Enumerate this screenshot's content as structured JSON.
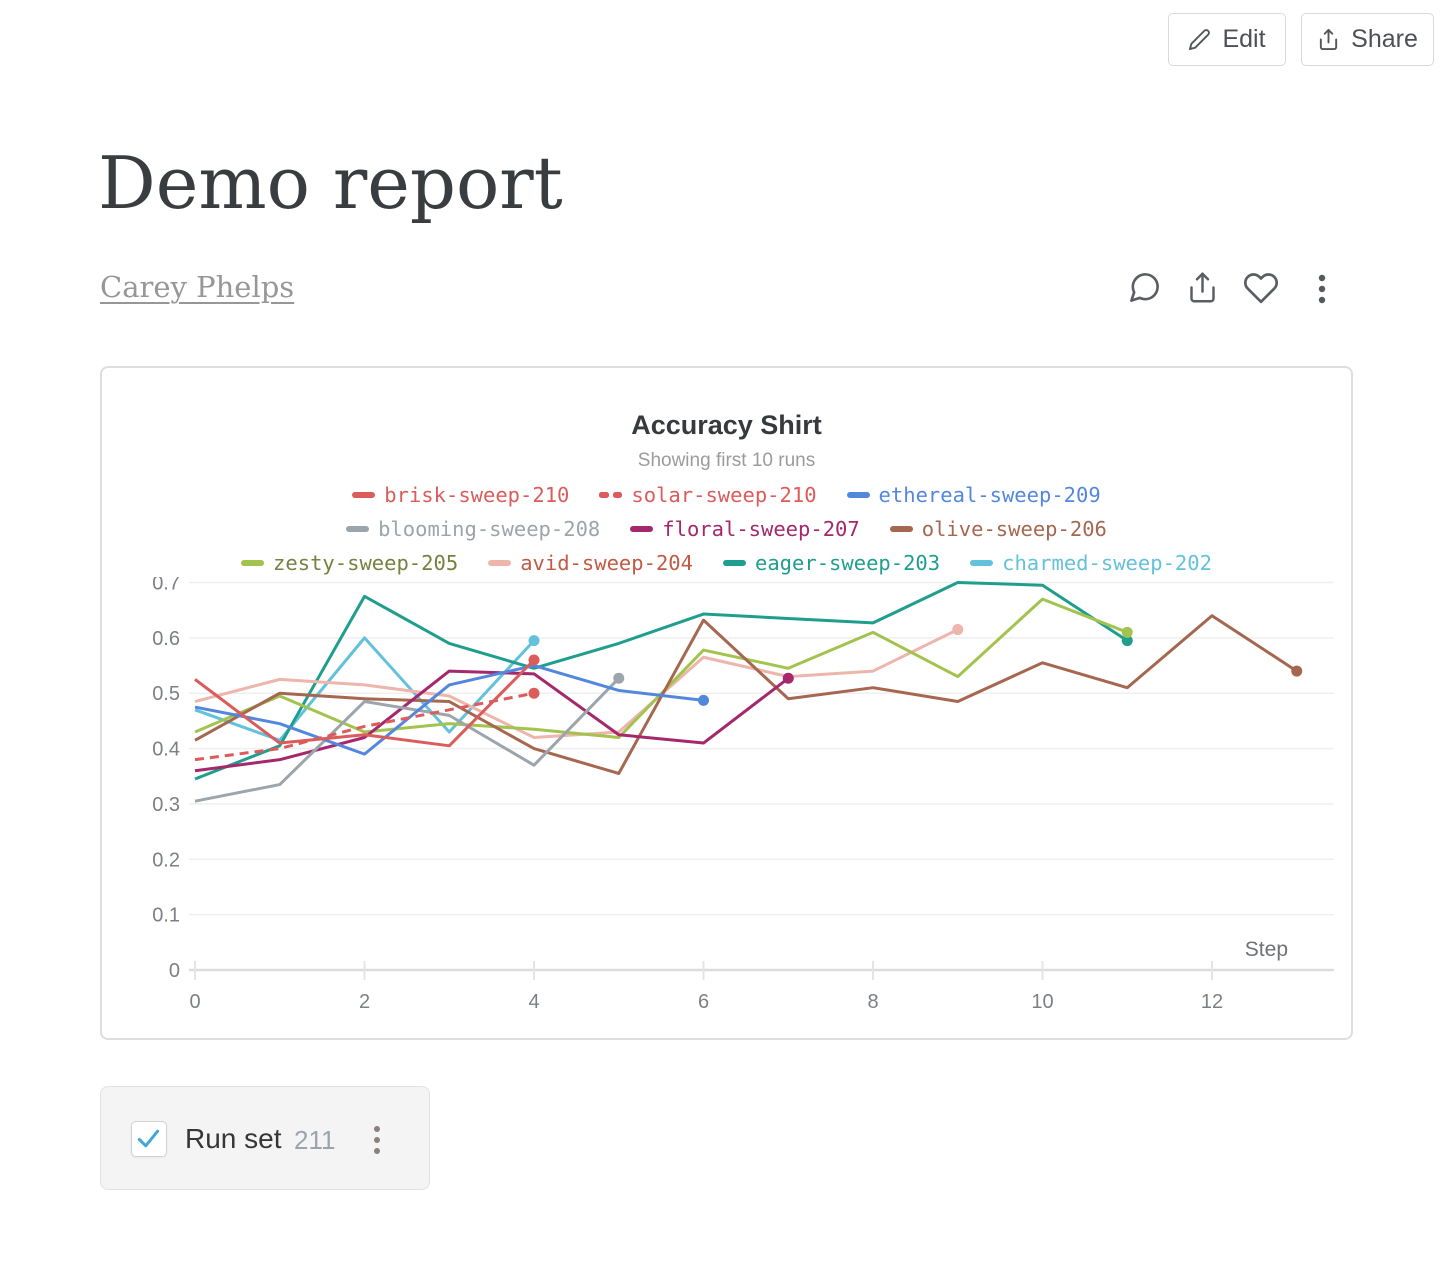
{
  "toolbar": {
    "edit_label": "Edit",
    "share_label": "Share"
  },
  "report": {
    "title": "Demo report",
    "author": "Carey Phelps"
  },
  "runset": {
    "label": "Run set",
    "count": "211",
    "checked": true
  },
  "icons": {
    "edit": "pencil-icon",
    "share": "share-up-arrow-icon",
    "header": [
      "comment-bubble-icon",
      "export-icon",
      "heart-icon",
      "kebab-menu-icon"
    ],
    "checkmark_color": "#3fa7d6"
  },
  "chart_data": {
    "type": "line",
    "title": "Accuracy Shirt",
    "subtitle": "Showing first 10 runs",
    "xlabel": "Step",
    "ylabel": "",
    "x_start": 0,
    "x_step": 1,
    "x_ticks": [
      0,
      2,
      4,
      6,
      8,
      10,
      12
    ],
    "y_ticks": [
      0,
      0.1,
      0.2,
      0.3,
      0.4,
      0.5,
      0.6,
      0.7
    ],
    "xlim": [
      0,
      13.4
    ],
    "ylim": [
      0,
      0.7
    ],
    "grid": true,
    "legend_position": "top",
    "legend_rows": [
      3,
      3,
      4
    ],
    "series": [
      {
        "name": "brisk-sweep-210",
        "color": "#dc5b5b",
        "dashed": false,
        "values": [
          0.525,
          0.41,
          0.425,
          0.405,
          0.56
        ]
      },
      {
        "name": "solar-sweep-210",
        "color": "#dc5b5b",
        "dashed": true,
        "values": [
          0.38,
          0.4,
          0.44,
          0.47,
          0.5
        ]
      },
      {
        "name": "ethereal-sweep-209",
        "color": "#5387dd",
        "dashed": false,
        "values": [
          0.475,
          0.445,
          0.39,
          0.515,
          0.55,
          0.505,
          0.487
        ]
      },
      {
        "name": "blooming-sweep-208",
        "color": "#9ca5ac",
        "dashed": false,
        "values": [
          0.305,
          0.335,
          0.485,
          0.46,
          0.37,
          0.527
        ]
      },
      {
        "name": "floral-sweep-207",
        "color": "#a4286b",
        "dashed": false,
        "values": [
          0.36,
          0.38,
          0.42,
          0.54,
          0.535,
          0.425,
          0.41,
          0.527
        ]
      },
      {
        "name": "olive-sweep-206",
        "color": "#a5674f",
        "dashed": false,
        "values": [
          0.415,
          0.5,
          0.49,
          0.485,
          0.4,
          0.355,
          0.632,
          0.49,
          0.51,
          0.485,
          0.555,
          0.51,
          0.64,
          0.54
        ]
      },
      {
        "name": "zesty-sweep-205",
        "color": "#a3c34f",
        "label_color": "#76813f",
        "dashed": false,
        "values": [
          0.43,
          0.495,
          0.43,
          0.445,
          0.435,
          0.42,
          0.578,
          0.545,
          0.61,
          0.53,
          0.67,
          0.61
        ]
      },
      {
        "name": "avid-sweep-204",
        "color": "#edb5ab",
        "label_color": "#c05b45",
        "dashed": false,
        "values": [
          0.485,
          0.525,
          0.515,
          0.495,
          0.42,
          0.43,
          0.565,
          0.53,
          0.54,
          0.615
        ]
      },
      {
        "name": "eager-sweep-203",
        "color": "#1f9e8e",
        "dashed": false,
        "values": [
          0.345,
          0.405,
          0.675,
          0.59,
          0.545,
          0.59,
          0.643,
          0.635,
          0.627,
          0.7,
          0.695,
          0.595
        ]
      },
      {
        "name": "charmed-sweep-202",
        "color": "#64c1dc",
        "dashed": false,
        "values": [
          0.47,
          0.415,
          0.6,
          0.43,
          0.595
        ]
      }
    ]
  }
}
